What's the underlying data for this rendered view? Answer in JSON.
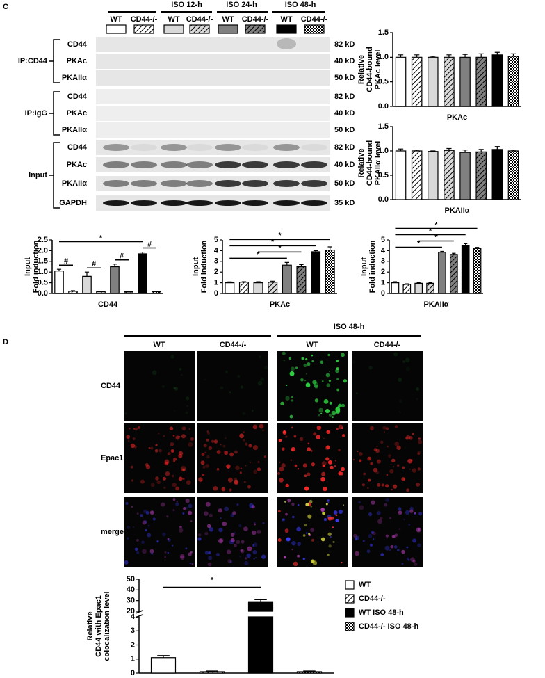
{
  "panel_c": {
    "label": "C",
    "groups": [
      "ISO  12-h",
      "ISO 24-h",
      "ISO 48-h"
    ],
    "columns": [
      "WT",
      "CD44-/-",
      "WT",
      "CD44-/-",
      "WT",
      "CD44-/-",
      "WT",
      "CD44-/-"
    ],
    "blot_groups": [
      {
        "name": "IP:CD44",
        "rows": [
          {
            "protein": "CD44",
            "size": "82 kD"
          },
          {
            "protein": "PKAc",
            "size": "40 kD"
          },
          {
            "protein": "PKAIIα",
            "size": "50 kD"
          }
        ]
      },
      {
        "name": "IP:IgG",
        "rows": [
          {
            "protein": "CD44",
            "size": "82 kD"
          },
          {
            "protein": "PKAc",
            "size": "40 kD"
          },
          {
            "protein": "PKAIIα",
            "size": "50 kD"
          }
        ]
      },
      {
        "name": "Input",
        "rows": [
          {
            "protein": "CD44",
            "size": "82 kD"
          },
          {
            "protein": "PKAc",
            "size": "40 kD"
          },
          {
            "protein": "PKAIIα",
            "size": "50 kD"
          },
          {
            "protein": "GAPDH",
            "size": "35 kD"
          }
        ]
      }
    ]
  },
  "panel_d": {
    "label": "D",
    "group": "ISO 48-h",
    "columns": [
      "WT",
      "CD44-/-",
      "WT",
      "CD44-/-"
    ],
    "rows": [
      "CD44",
      "Epac1",
      "merge"
    ]
  },
  "chart_data": [
    {
      "type": "bar",
      "y_label": [
        "Relative",
        "CD44-bound",
        "PKAc level"
      ],
      "x_label": "PKAc",
      "categories": [
        null,
        null,
        null,
        null,
        null,
        null,
        null,
        null
      ],
      "values": [
        1.0,
        1.0,
        1.0,
        1.0,
        1.0,
        1.0,
        1.05,
        1.02
      ],
      "errors": [
        0.05,
        0.05,
        0.02,
        0.05,
        0.06,
        0.07,
        0.05,
        0.05
      ],
      "colors": [
        "#ffffff",
        "#ffffff",
        "#d9d9d9",
        "#d9d9d9",
        "#808080",
        "#808080",
        "#000000",
        "#ffffff"
      ],
      "patterns": [
        null,
        "hatch",
        null,
        "hatch",
        null,
        "hatch",
        null,
        "checker"
      ],
      "ylim": [
        0,
        1.5
      ],
      "yticks": [
        {
          "value": 0,
          "label": "0.0"
        },
        0.5,
        {
          "value": 1,
          "label": "1.0"
        },
        1.5
      ]
    },
    {
      "type": "bar",
      "y_label": [
        "Relative",
        "CD44-bound",
        "PKAIIα level"
      ],
      "x_label": "PKAIIα",
      "categories": [
        null,
        null,
        null,
        null,
        null,
        null,
        null,
        null
      ],
      "values": [
        1.0,
        1.0,
        0.99,
        1.01,
        0.97,
        0.98,
        1.03,
        1.0
      ],
      "errors": [
        0.04,
        0.02,
        0.01,
        0.04,
        0.05,
        0.05,
        0.06,
        0.02
      ],
      "colors": [
        "#ffffff",
        "#ffffff",
        "#d9d9d9",
        "#d9d9d9",
        "#808080",
        "#808080",
        "#000000",
        "#ffffff"
      ],
      "patterns": [
        null,
        "hatch",
        null,
        "hatch",
        null,
        "hatch",
        null,
        "checker"
      ],
      "ylim": [
        0,
        1.5
      ],
      "yticks": [
        {
          "value": 0,
          "label": "0.0"
        },
        0.5,
        {
          "value": 1,
          "label": "1.0"
        },
        1.5
      ]
    },
    {
      "type": "bar",
      "y_label": [
        "Input",
        "Fold induction"
      ],
      "x_label": "CD44",
      "categories": [
        null,
        null,
        null,
        null,
        null,
        null,
        null,
        null
      ],
      "values": [
        1.05,
        0.1,
        0.8,
        0.08,
        1.25,
        0.08,
        1.85,
        0.08
      ],
      "errors": [
        0.08,
        0.03,
        0.2,
        0.02,
        0.12,
        0.03,
        0.08,
        0.02
      ],
      "colors": [
        "#ffffff",
        "#ffffff",
        "#d9d9d9",
        "#d9d9d9",
        "#808080",
        "#808080",
        "#000000",
        "#ffffff"
      ],
      "patterns": [
        null,
        "hatch",
        null,
        "hatch",
        null,
        "hatch",
        null,
        "checker"
      ],
      "ylim": [
        0,
        2.5
      ],
      "yticks": [
        {
          "value": 0,
          "label": "0.0"
        },
        0.5,
        {
          "value": 1,
          "label": "1.0"
        },
        1.5,
        {
          "value": 2,
          "label": "2.0"
        },
        2.5
      ],
      "annotations": [
        {
          "text": "#",
          "from": 0,
          "to": 1
        },
        {
          "text": "#",
          "from": 2,
          "to": 3
        },
        {
          "text": "#",
          "from": 4,
          "to": 5
        },
        {
          "text": "#",
          "from": 6,
          "to": 7
        },
        {
          "text": "*",
          "from": 0,
          "to": 6
        }
      ]
    },
    {
      "type": "bar",
      "y_label": [
        "Input",
        "Fold induction"
      ],
      "x_label": "PKAc",
      "categories": [
        null,
        null,
        null,
        null,
        null,
        null,
        null,
        null
      ],
      "values": [
        1.0,
        1.05,
        1.0,
        1.05,
        2.65,
        2.5,
        3.9,
        4.05
      ],
      "errors": [
        0.08,
        0.05,
        0.1,
        0.1,
        0.25,
        0.2,
        0.1,
        0.3
      ],
      "colors": [
        "#ffffff",
        "#ffffff",
        "#d9d9d9",
        "#d9d9d9",
        "#808080",
        "#808080",
        "#000000",
        "#ffffff"
      ],
      "patterns": [
        null,
        "hatch",
        null,
        "hatch",
        null,
        "hatch",
        null,
        "checker"
      ],
      "ylim": [
        0,
        5
      ],
      "yticks": [
        0,
        1,
        2,
        3,
        4,
        5
      ],
      "annotations": [
        {
          "text": "*",
          "from": 0,
          "to": 4
        },
        {
          "text": "*",
          "from": 2,
          "to": 5
        },
        {
          "text": "*",
          "from": 0,
          "to": 6
        },
        {
          "text": "*",
          "from": 0,
          "to": 7
        }
      ]
    },
    {
      "type": "bar",
      "y_label": [
        "Input",
        "Fold induction"
      ],
      "x_label": "PKAIIα",
      "categories": [
        null,
        null,
        null,
        null,
        null,
        null,
        null,
        null
      ],
      "values": [
        1.0,
        0.85,
        0.95,
        0.95,
        3.85,
        3.65,
        4.5,
        4.2
      ],
      "errors": [
        0.1,
        0.05,
        0.05,
        0.05,
        0.08,
        0.1,
        0.15,
        0.1
      ],
      "colors": [
        "#ffffff",
        "#ffffff",
        "#d9d9d9",
        "#d9d9d9",
        "#808080",
        "#808080",
        "#000000",
        "#ffffff"
      ],
      "patterns": [
        null,
        "hatch",
        null,
        "hatch",
        null,
        "hatch",
        null,
        "checker"
      ],
      "ylim": [
        0,
        5
      ],
      "yticks": [
        0,
        1,
        2,
        3,
        4,
        5
      ],
      "annotations": [
        {
          "text": "*",
          "from": 0,
          "to": 4
        },
        {
          "text": "*",
          "from": 2,
          "to": 5
        },
        {
          "text": "*",
          "from": 0,
          "to": 6
        },
        {
          "text": "*",
          "from": 0,
          "to": 7
        }
      ]
    },
    {
      "type": "bar",
      "y_label": [
        "Relative",
        "CD44 with Epac1",
        "colocalization level"
      ],
      "categories": [
        null,
        null,
        null,
        null
      ],
      "values": [
        1.1,
        0.1,
        29,
        0.1
      ],
      "errors": [
        0.15,
        0.05,
        1.8,
        0.05
      ],
      "colors": [
        "#ffffff",
        "#ffffff",
        "#000000",
        "#ffffff"
      ],
      "patterns": [
        null,
        "hatch",
        null,
        "checker"
      ],
      "legend": [
        "WT",
        "CD44-/-",
        "WT ISO 48-h",
        "CD44-/- ISO 48-h"
      ],
      "ylim": [
        0,
        50
      ],
      "ybreak": [
        4,
        20
      ],
      "yticks": [
        0,
        1,
        2,
        3,
        4,
        20,
        30,
        40,
        50
      ],
      "annotations": [
        {
          "text": "*",
          "from": 0,
          "to": 2
        }
      ]
    }
  ]
}
